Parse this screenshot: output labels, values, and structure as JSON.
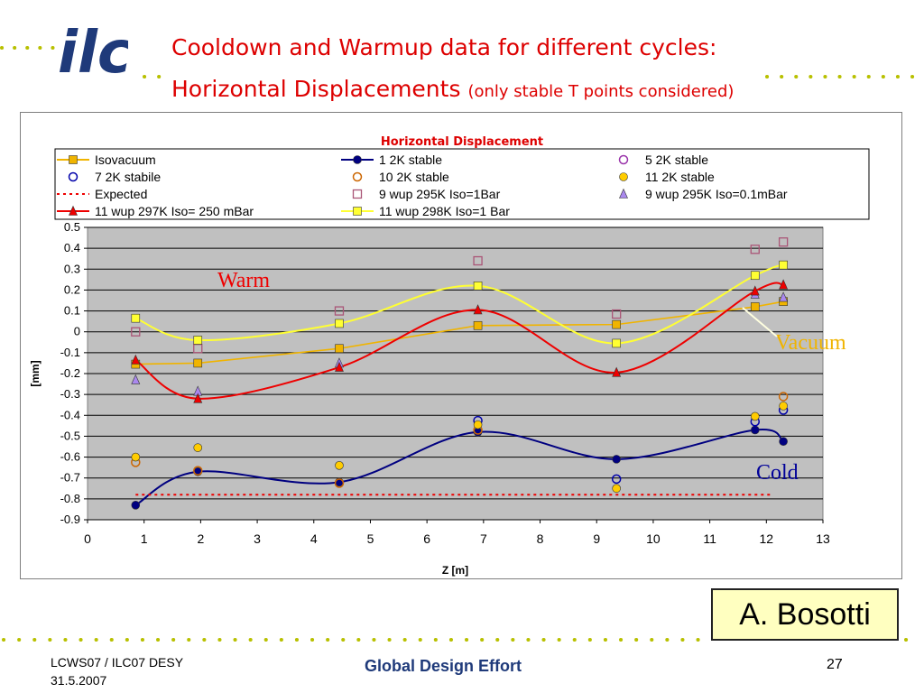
{
  "header": {
    "logo_text": "ilc",
    "title_line1": "Cooldown and Warmup data for different cycles:",
    "title_line2": "Horizontal Displacements",
    "title_note": "(only stable T points considered)"
  },
  "author": "A. Bosotti",
  "footer": {
    "event_line1": "LCWS07 / ILC07 DESY",
    "event_line2": "31.5.2007",
    "center": "Global Design Effort",
    "page": "27"
  },
  "colors": {
    "title": "#dd0000",
    "dots": "#b8c000",
    "plot_bg": "#c0c0c0",
    "footer_center": "#1f3a7a",
    "author_bg": "#ffffc0"
  },
  "chart_data": {
    "type": "line",
    "title": "Horizontal Displacement",
    "xlabel": "Z [m]",
    "ylabel": "[mm]",
    "xlim": [
      0,
      13
    ],
    "ylim": [
      -0.9,
      0.5
    ],
    "xticks": [
      0,
      1,
      2,
      3,
      4,
      5,
      6,
      7,
      8,
      9,
      10,
      11,
      12,
      13
    ],
    "yticks": [
      0.5,
      0.4,
      0.3,
      0.2,
      0.1,
      0,
      -0.1,
      -0.2,
      -0.3,
      -0.4,
      -0.5,
      -0.6,
      -0.7,
      -0.8,
      -0.9
    ],
    "grid": true,
    "legend_position": "top",
    "series": [
      {
        "name": "Isovacuum",
        "color": "#f0b400",
        "marker": "square",
        "line": "solid",
        "x": [
          0.85,
          1.95,
          4.45,
          6.9,
          9.35,
          11.8,
          12.3
        ],
        "y": [
          -0.155,
          -0.15,
          -0.08,
          0.03,
          0.035,
          0.12,
          0.145
        ]
      },
      {
        "name": "1 2K stable",
        "color": "#000080",
        "marker": "circle",
        "line": "smooth",
        "x": [
          0.85,
          1.95,
          4.45,
          6.9,
          9.35,
          11.8,
          12.3
        ],
        "y": [
          -0.83,
          -0.67,
          -0.72,
          -0.48,
          -0.61,
          -0.47,
          -0.525
        ]
      },
      {
        "name": "5 2K stable",
        "color": "#9933aa",
        "marker": "circle-open",
        "line": "none",
        "x": [],
        "y": []
      },
      {
        "name": "7 2K stabile",
        "color": "#0000aa",
        "marker": "circle-open",
        "line": "none",
        "x": [
          6.9,
          9.35,
          11.8,
          12.3
        ],
        "y": [
          -0.425,
          -0.705,
          -0.43,
          -0.375
        ]
      },
      {
        "name": "10 2K stable",
        "color": "#cc6600",
        "marker": "circle-open",
        "line": "none",
        "x": [
          0.85,
          1.95,
          4.45,
          6.9,
          12.3
        ],
        "y": [
          -0.625,
          -0.665,
          -0.725,
          -0.47,
          -0.31
        ]
      },
      {
        "name": "11 2K stable",
        "color": "#ffcc00",
        "marker": "circle",
        "line": "none",
        "x": [
          0.85,
          1.95,
          4.45,
          6.9,
          9.35,
          11.8,
          12.3
        ],
        "y": [
          -0.6,
          -0.555,
          -0.64,
          -0.445,
          -0.75,
          -0.405,
          -0.355
        ]
      },
      {
        "name": "Expected",
        "color": "#ee0000",
        "marker": "none",
        "line": "dotted",
        "x": [
          0.85,
          12.1
        ],
        "y": [
          -0.78,
          -0.78
        ]
      },
      {
        "name": "9 wup 295K Iso=1Bar",
        "color": "#aa5577",
        "marker": "square-open",
        "line": "none",
        "x": [
          0.85,
          1.95,
          4.45,
          6.9,
          9.35,
          11.8,
          12.3
        ],
        "y": [
          0.0,
          -0.08,
          0.1,
          0.34,
          0.085,
          0.395,
          0.43
        ]
      },
      {
        "name": "9 wup 295K Iso=0.1mBar",
        "color": "#aa88ee",
        "marker": "triangle",
        "line": "none",
        "x": [
          0.85,
          1.95,
          4.45,
          11.8,
          12.3
        ],
        "y": [
          -0.23,
          -0.285,
          -0.15,
          0.18,
          0.165
        ]
      },
      {
        "name": "11 wup 297K Iso= 250 mBar",
        "color": "#ee0000",
        "marker": "triangle",
        "line": "smooth",
        "x": [
          0.85,
          1.95,
          4.45,
          6.9,
          9.35,
          11.8,
          12.3
        ],
        "y": [
          -0.135,
          -0.32,
          -0.17,
          0.105,
          -0.195,
          0.195,
          0.225
        ]
      },
      {
        "name": "11 wup 298K Iso=1 Bar",
        "color": "#ffff33",
        "marker": "square",
        "line": "smooth",
        "x": [
          0.85,
          1.95,
          4.45,
          6.9,
          9.35,
          11.8,
          12.3
        ],
        "y": [
          0.065,
          -0.04,
          0.04,
          0.22,
          -0.055,
          0.27,
          0.32
        ]
      }
    ],
    "annotations": {
      "warm": {
        "text": "Warm",
        "color": "#ee0000"
      },
      "vacuum": {
        "text": "Vacuum",
        "color": "#f0b400"
      },
      "cold": {
        "text": "Cold",
        "color": "#000099"
      }
    }
  }
}
